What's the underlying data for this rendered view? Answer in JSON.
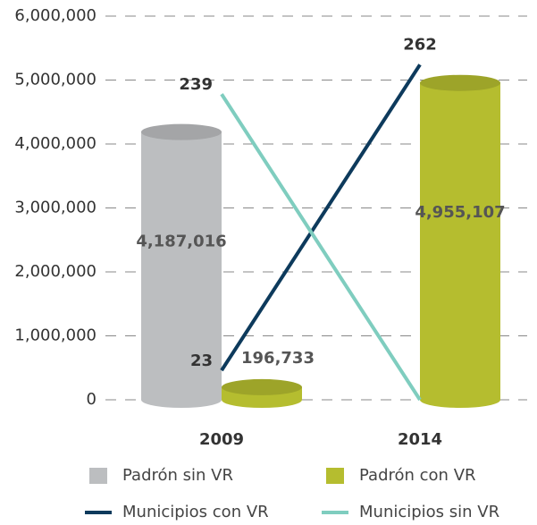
{
  "chart_data": {
    "type": "bar",
    "categories": [
      "2009",
      "2014"
    ],
    "series": [
      {
        "name": "Padrón sin VR",
        "color": "#bcbec0",
        "values": [
          4187016,
          null
        ],
        "value_labels": [
          "4,187,016",
          null
        ]
      },
      {
        "name": "Padrón con VR",
        "color": "#b5bd2f",
        "values": [
          196733,
          4955107
        ],
        "value_labels": [
          "196,733",
          "4,955,107"
        ]
      },
      {
        "name": "Municipios con VR",
        "type": "line",
        "axis": "y2",
        "color": "#0d3a5c",
        "values": [
          23,
          262
        ],
        "value_labels": [
          "23",
          "262"
        ]
      },
      {
        "name": "Municipios sin VR",
        "type": "line",
        "axis": "y2",
        "color": "#7fcdbf",
        "values": [
          239,
          0
        ],
        "value_labels": [
          "239",
          null
        ]
      }
    ],
    "ylim": [
      0,
      6000000
    ],
    "yticks": [
      0,
      {
        "value": 1000000,
        "label": "1,000,000"
      },
      {
        "value": 2000000,
        "label": "2,000,000"
      },
      {
        "value": 3000000,
        "label": "3,000,000"
      },
      {
        "value": 4000000,
        "label": "4,000,000"
      },
      {
        "value": 5000000,
        "label": "5,000,000"
      },
      {
        "value": 6000000,
        "label": "6,000,000"
      }
    ],
    "y2lim": [
      0,
      300
    ],
    "grid": true
  }
}
